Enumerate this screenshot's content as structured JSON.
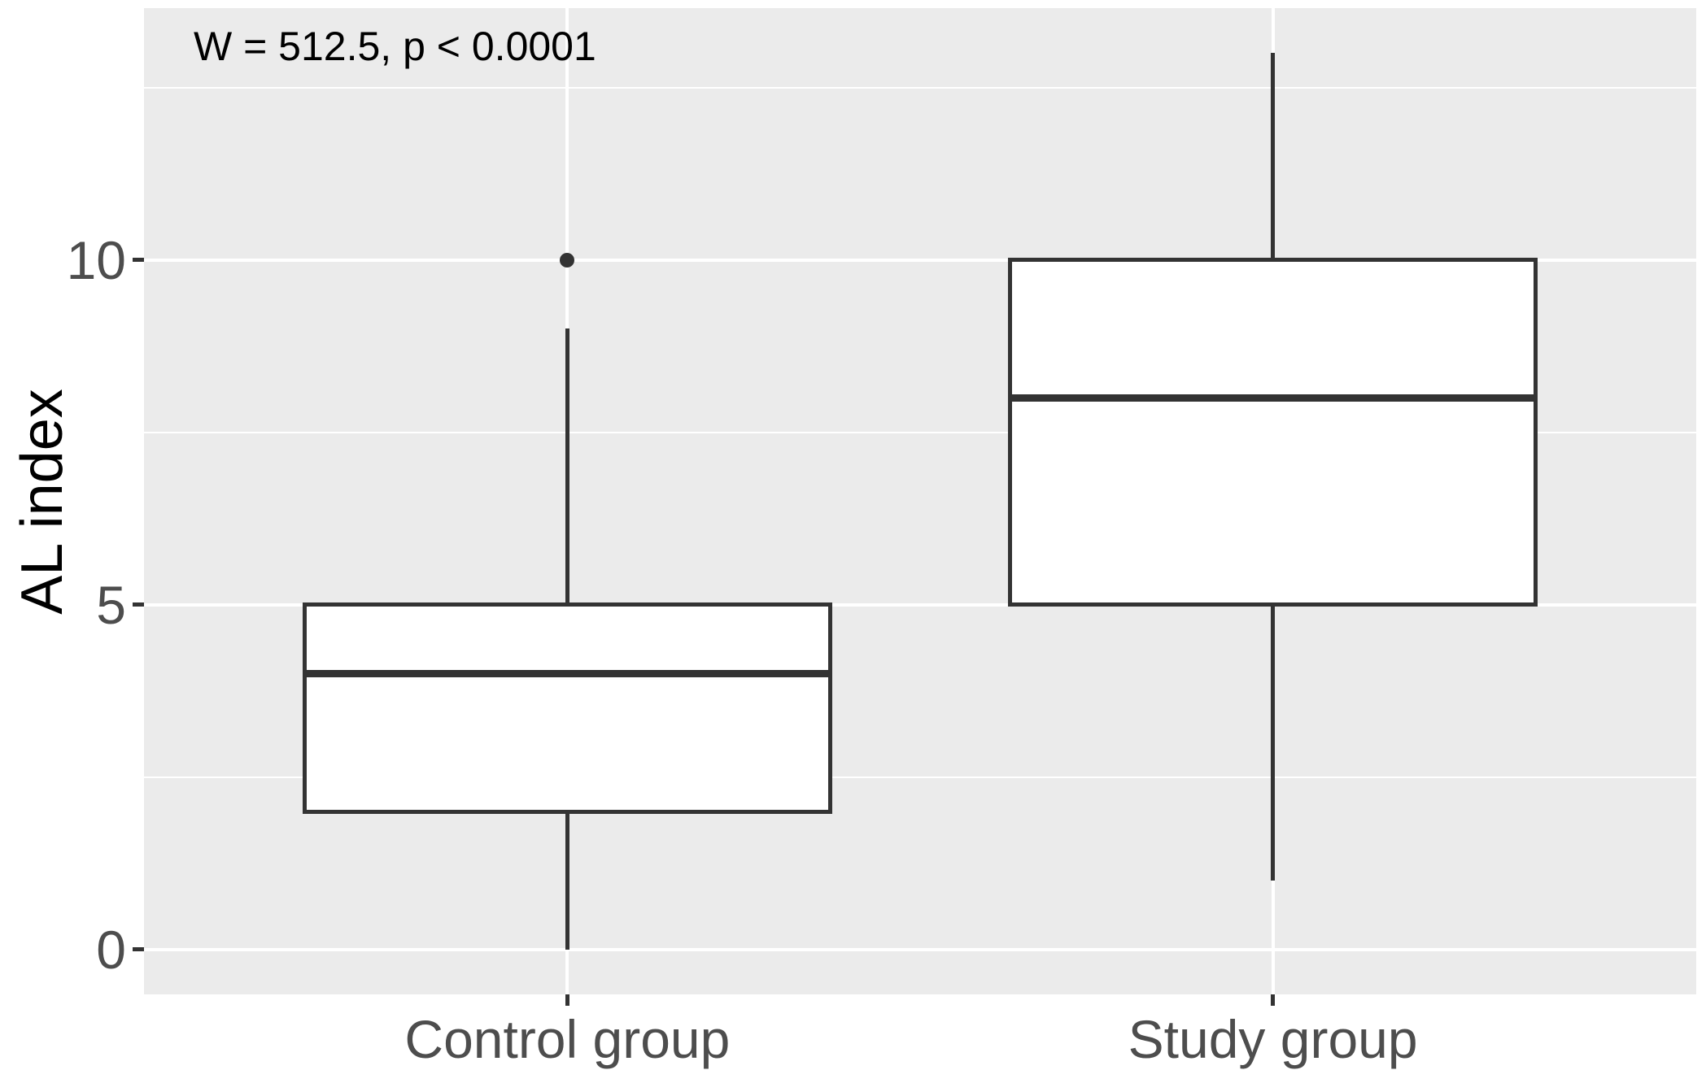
{
  "chart_data": {
    "type": "boxplot",
    "title": "",
    "annotation": "W = 512.5, p < 0.0001",
    "ylabel": "AL index",
    "xlabel": "",
    "categories": [
      "Control group",
      "Study group"
    ],
    "series": [
      {
        "name": "Control group",
        "whisker_low": 0,
        "q1": 2,
        "median": 4,
        "q3": 5,
        "whisker_high": 9,
        "outliers": [
          10
        ]
      },
      {
        "name": "Study group",
        "whisker_low": 1,
        "q1": 5,
        "median": 8,
        "q3": 10,
        "whisker_high": 13,
        "outliers": []
      }
    ],
    "yticks": [
      0,
      5,
      10
    ],
    "yticks_minor": [
      2.5,
      7.5,
      12.5
    ],
    "ylim": [
      -0.65,
      13.65
    ],
    "box_width_fraction": 0.75,
    "grid": "white major and minor horizontal lines, white vertical line per category, on grey panel",
    "legend": "none"
  },
  "style": {
    "background": "#FFFFFF",
    "panel_bg": "#EBEBEB",
    "grid_color": "#FFFFFF",
    "box_fill": "#FFFFFF",
    "line_color": "#333333",
    "tick_text_color": "#4D4D4D",
    "title_color": "#000000"
  }
}
